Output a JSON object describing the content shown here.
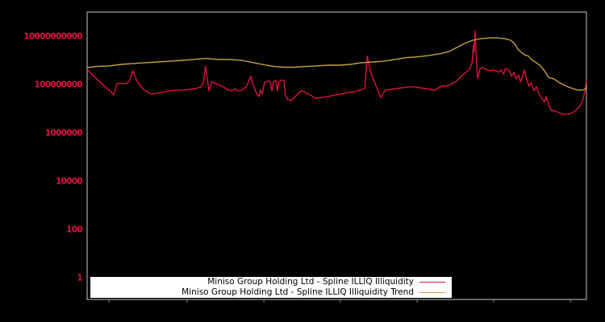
{
  "figure": {
    "background_color": "#000000"
  },
  "plot": {
    "background_color": "#000000",
    "border_color": "#c8c8c8",
    "x_tick_color": "#8a8a8a"
  },
  "y_axis": {
    "label_color": "#dc143c"
  },
  "legend": {
    "background_color": "#ffffff",
    "text_color": "#000000"
  },
  "chart_data": {
    "type": "line",
    "title": "",
    "xlabel": "",
    "ylabel": "",
    "y_scale": "log",
    "ylim": [
      0.1,
      100000000000.0
    ],
    "grid": false,
    "legend_position": "bottom-center",
    "y_ticks": [
      {
        "label": "10000000000",
        "value": 10000000000.0
      },
      {
        "label": "100000000",
        "value": 100000000.0
      },
      {
        "label": "1000000",
        "value": 1000000.0
      },
      {
        "label": "10000",
        "value": 10000.0
      },
      {
        "label": "100",
        "value": 100.0
      },
      {
        "label": "1",
        "value": 1
      }
    ],
    "x_tick_labels": [],
    "x_tick_positions_pct": [
      4.4,
      20.0,
      35.4,
      50.7,
      66.1,
      81.4,
      96.8
    ],
    "series": [
      {
        "name": "Miniso Group Holding Ltd - Spline ILLIQ Illiquidity",
        "color": "#dc143c",
        "points": [
          [
            0,
            430000000.0
          ],
          [
            0.6,
            320000000.0
          ],
          [
            1.1,
            250000000.0
          ],
          [
            1.9,
            170000000.0
          ],
          [
            2.9,
            110000000.0
          ],
          [
            4,
            68000000.0
          ],
          [
            4.8,
            50000000.0
          ],
          [
            5.3,
            37000000.0
          ],
          [
            5.7,
            68000000.0
          ],
          [
            6,
            110000000.0
          ],
          [
            7.8,
            110000000.0
          ],
          [
            8.4,
            130000000.0
          ],
          [
            8.9,
            250000000.0
          ],
          [
            9.2,
            370000000.0
          ],
          [
            9.9,
            150000000.0
          ],
          [
            10.7,
            85000000.0
          ],
          [
            11.6,
            56000000.0
          ],
          [
            12.4,
            44000000.0
          ],
          [
            12.9,
            40000000.0
          ],
          [
            14.2,
            44000000.0
          ],
          [
            15.5,
            50000000.0
          ],
          [
            16.8,
            56000000.0
          ],
          [
            18.1,
            59000000.0
          ],
          [
            19.4,
            59000000.0
          ],
          [
            20.7,
            63000000.0
          ],
          [
            21.8,
            68000000.0
          ],
          [
            22.8,
            80000000.0
          ],
          [
            23.3,
            120000000.0
          ],
          [
            23.7,
            590000000.0
          ],
          [
            24.1,
            150000000.0
          ],
          [
            24.4,
            56000000.0
          ],
          [
            25,
            130000000.0
          ],
          [
            25.8,
            110000000.0
          ],
          [
            26.7,
            92000000.0
          ],
          [
            27.5,
            74000000.0
          ],
          [
            28.3,
            59000000.0
          ],
          [
            29.1,
            56000000.0
          ],
          [
            29.6,
            68000000.0
          ],
          [
            30,
            56000000.0
          ],
          [
            30.7,
            56000000.0
          ],
          [
            31.3,
            63000000.0
          ],
          [
            32,
            92000000.0
          ],
          [
            32.8,
            220000000.0
          ],
          [
            33.1,
            120000000.0
          ],
          [
            33.6,
            63000000.0
          ],
          [
            34.1,
            37000000.0
          ],
          [
            34.4,
            32000000.0
          ],
          [
            34.7,
            59000000.0
          ],
          [
            35.1,
            40000000.0
          ],
          [
            35.5,
            120000000.0
          ],
          [
            36.2,
            140000000.0
          ],
          [
            36.7,
            130000000.0
          ],
          [
            37,
            56000000.0
          ],
          [
            37.3,
            130000000.0
          ],
          [
            37.8,
            150000000.0
          ],
          [
            38.1,
            56000000.0
          ],
          [
            38.4,
            130000000.0
          ],
          [
            38.9,
            150000000.0
          ],
          [
            39.4,
            150000000.0
          ],
          [
            39.7,
            37000000.0
          ],
          [
            40.2,
            23000000.0
          ],
          [
            40.9,
            22000000.0
          ],
          [
            41.7,
            32000000.0
          ],
          [
            42.5,
            47000000.0
          ],
          [
            43.1,
            56000000.0
          ],
          [
            43.9,
            44000000.0
          ],
          [
            44.9,
            35000000.0
          ],
          [
            45.7,
            27000000.0
          ],
          [
            47,
            29000000.0
          ],
          [
            48.3,
            32000000.0
          ],
          [
            49.6,
            37000000.0
          ],
          [
            50.9,
            40000000.0
          ],
          [
            52.2,
            47000000.0
          ],
          [
            53.5,
            50000000.0
          ],
          [
            54.8,
            59000000.0
          ],
          [
            55.6,
            68000000.0
          ],
          [
            56.1,
            1500000000.0
          ],
          [
            56.7,
            370000000.0
          ],
          [
            57.4,
            150000000.0
          ],
          [
            58.2,
            59000000.0
          ],
          [
            58.8,
            29000000.0
          ],
          [
            59.3,
            44000000.0
          ],
          [
            59.8,
            59000000.0
          ],
          [
            60.9,
            63000000.0
          ],
          [
            62,
            68000000.0
          ],
          [
            63.2,
            74000000.0
          ],
          [
            64.3,
            80000000.0
          ],
          [
            65.4,
            80000000.0
          ],
          [
            66.6,
            74000000.0
          ],
          [
            67.7,
            68000000.0
          ],
          [
            68.8,
            63000000.0
          ],
          [
            69.8,
            59000000.0
          ],
          [
            70.4,
            74000000.0
          ],
          [
            71.1,
            86000000.0
          ],
          [
            71.9,
            86000000.0
          ],
          [
            72.7,
            100000000.0
          ],
          [
            73.5,
            120000000.0
          ],
          [
            74.3,
            160000000.0
          ],
          [
            75.1,
            240000000.0
          ],
          [
            75.9,
            320000000.0
          ],
          [
            76.6,
            430000000.0
          ],
          [
            77.1,
            800000000.0
          ],
          [
            77.4,
            4600000000.0
          ],
          [
            77.5,
            2200000000.0
          ],
          [
            77.7,
            17000000000.0
          ],
          [
            78,
            680000000.0
          ],
          [
            78.2,
            180000000.0
          ],
          [
            78.7,
            460000000.0
          ],
          [
            79.3,
            500000000.0
          ],
          [
            79.9,
            430000000.0
          ],
          [
            80.6,
            370000000.0
          ],
          [
            81.3,
            400000000.0
          ],
          [
            81.9,
            370000000.0
          ],
          [
            82.4,
            320000000.0
          ],
          [
            82.9,
            400000000.0
          ],
          [
            83.4,
            270000000.0
          ],
          [
            83.8,
            460000000.0
          ],
          [
            84.5,
            400000000.0
          ],
          [
            85,
            220000000.0
          ],
          [
            85.5,
            320000000.0
          ],
          [
            85.9,
            170000000.0
          ],
          [
            86.4,
            250000000.0
          ],
          [
            86.8,
            130000000.0
          ],
          [
            87.2,
            220000000.0
          ],
          [
            87.6,
            400000000.0
          ],
          [
            88,
            170000000.0
          ],
          [
            88.5,
            86000000.0
          ],
          [
            88.9,
            120000000.0
          ],
          [
            89.5,
            56000000.0
          ],
          [
            90,
            80000000.0
          ],
          [
            90.5,
            40000000.0
          ],
          [
            91.1,
            27000000.0
          ],
          [
            91.6,
            19000000.0
          ],
          [
            91.9,
            32000000.0
          ],
          [
            92.4,
            15000000.0
          ],
          [
            92.9,
            8600000.0
          ],
          [
            93.7,
            8000000.0
          ],
          [
            94.5,
            6800000.0
          ],
          [
            95.3,
            5900000.0
          ],
          [
            96.3,
            5900000.0
          ],
          [
            96.9,
            6300000.0
          ],
          [
            97.7,
            8000000.0
          ],
          [
            98.4,
            11000000.0
          ],
          [
            98.9,
            15000000.0
          ],
          [
            99.4,
            27000000.0
          ],
          [
            99.7,
            59000000.0
          ],
          [
            100,
            150000000.0
          ]
        ]
      },
      {
        "name": "Miniso Group Holding Ltd - Spline ILLIQ Illiquidity Trend",
        "color": "#c5a23b",
        "points": [
          [
            0,
            500000000.0
          ],
          [
            1.9,
            560000000.0
          ],
          [
            4.4,
            590000000.0
          ],
          [
            6.8,
            680000000.0
          ],
          [
            9.2,
            740000000.0
          ],
          [
            11.6,
            800000000.0
          ],
          [
            14.1,
            860000000.0
          ],
          [
            16.5,
            920000000.0
          ],
          [
            18.9,
            1000000000.0
          ],
          [
            21.3,
            1100000000.0
          ],
          [
            23.7,
            1200000000.0
          ],
          [
            26.2,
            1100000000.0
          ],
          [
            28.6,
            1100000000.0
          ],
          [
            31,
            1000000000.0
          ],
          [
            33.4,
            800000000.0
          ],
          [
            35.9,
            630000000.0
          ],
          [
            37.5,
            560000000.0
          ],
          [
            39.4,
            520000000.0
          ],
          [
            41.5,
            520000000.0
          ],
          [
            43.6,
            560000000.0
          ],
          [
            45.9,
            590000000.0
          ],
          [
            48.1,
            630000000.0
          ],
          [
            50.4,
            630000000.0
          ],
          [
            52.7,
            680000000.0
          ],
          [
            54.9,
            800000000.0
          ],
          [
            57.2,
            860000000.0
          ],
          [
            59.4,
            920000000.0
          ],
          [
            61.7,
            1100000000.0
          ],
          [
            64,
            1300000000.0
          ],
          [
            66.2,
            1400000000.0
          ],
          [
            68.5,
            1600000000.0
          ],
          [
            70.8,
            1900000000.0
          ],
          [
            72.4,
            2300000000.0
          ],
          [
            74,
            3400000000.0
          ],
          [
            75.6,
            5000000000.0
          ],
          [
            77.2,
            6800000000.0
          ],
          [
            78.8,
            7900000000.0
          ],
          [
            80.5,
            8500000000.0
          ],
          [
            82.1,
            8500000000.0
          ],
          [
            83.7,
            7900000000.0
          ],
          [
            84.8,
            6800000000.0
          ],
          [
            85.6,
            5000000000.0
          ],
          [
            86.4,
            2700000000.0
          ],
          [
            87.6,
            1700000000.0
          ],
          [
            88.4,
            1500000000.0
          ],
          [
            89.2,
            1000000000.0
          ],
          [
            90,
            800000000.0
          ],
          [
            90.8,
            590000000.0
          ],
          [
            91.6,
            370000000.0
          ],
          [
            92.4,
            200000000.0
          ],
          [
            93.5,
            170000000.0
          ],
          [
            94.3,
            130000000.0
          ],
          [
            95.3,
            100000000.0
          ],
          [
            96.3,
            80000000.0
          ],
          [
            97.3,
            68000000.0
          ],
          [
            98.2,
            59000000.0
          ],
          [
            99.2,
            59000000.0
          ],
          [
            100,
            68000000.0
          ]
        ]
      }
    ]
  }
}
